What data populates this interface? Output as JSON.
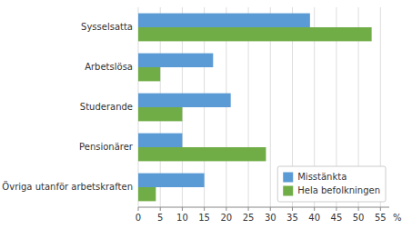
{
  "chart_data": {
    "type": "bar",
    "orientation": "horizontal",
    "categories": [
      "Sysselsatta",
      "Arbetslösa",
      "Studerande",
      "Pensionärer",
      "Övriga utanför arbetskraften"
    ],
    "series": [
      {
        "name": "Misstänkta",
        "color": "#5b9bd5",
        "values": [
          39,
          17,
          21,
          10,
          15
        ]
      },
      {
        "name": "Hela befolkningen",
        "color": "#70ad47",
        "values": [
          53,
          5,
          10,
          29,
          4
        ]
      }
    ],
    "xlim": [
      0,
      57
    ],
    "xticks": [
      0,
      5,
      10,
      15,
      20,
      25,
      30,
      35,
      40,
      45,
      50,
      55
    ],
    "annotations": [
      "%"
    ],
    "grid": true,
    "legend": "lower right"
  }
}
